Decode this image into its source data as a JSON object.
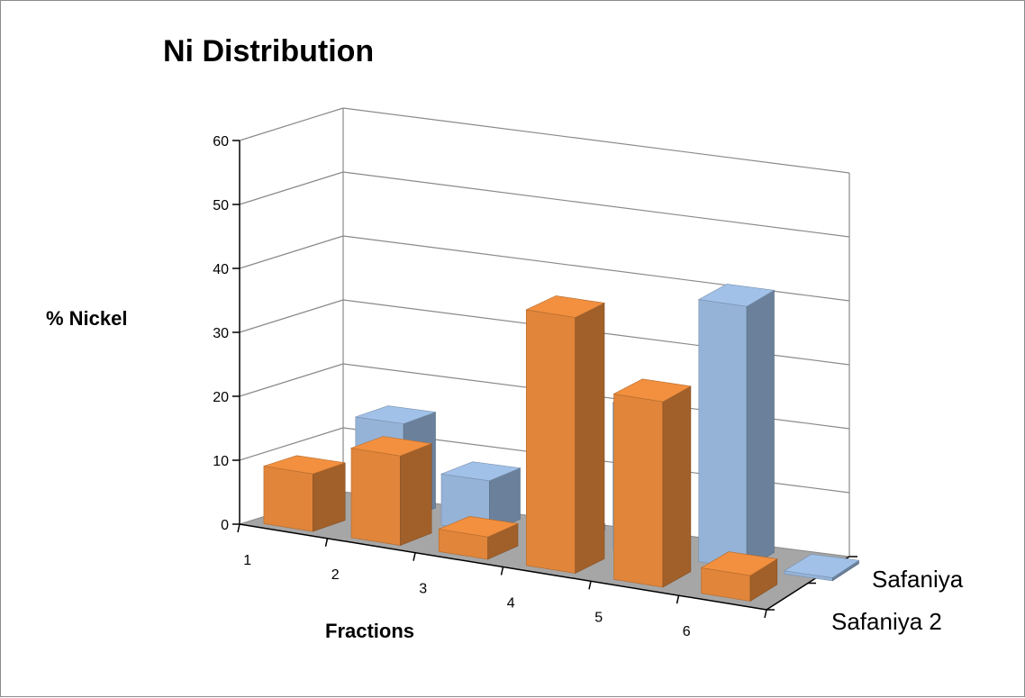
{
  "chart_data": {
    "type": "bar",
    "subtype": "3d-column",
    "title": "Ni Distribution",
    "xlabel": "Fractions",
    "ylabel": "% Nickel",
    "categories": [
      "1",
      "2",
      "3",
      "4",
      "5",
      "6"
    ],
    "ylim": [
      0,
      60
    ],
    "yticks": [
      0,
      10,
      20,
      30,
      40,
      50,
      60
    ],
    "grid": true,
    "series": [
      {
        "name": "Safaniya",
        "values": [
          15,
          8,
          1,
          23,
          41,
          0.5
        ],
        "color": "#95b3d7"
      },
      {
        "name": "Safaniya 2",
        "values": [
          9,
          14,
          3.5,
          40,
          29,
          4
        ],
        "color": "#e0853a"
      }
    ],
    "floor_color": "#a6a6a6"
  }
}
